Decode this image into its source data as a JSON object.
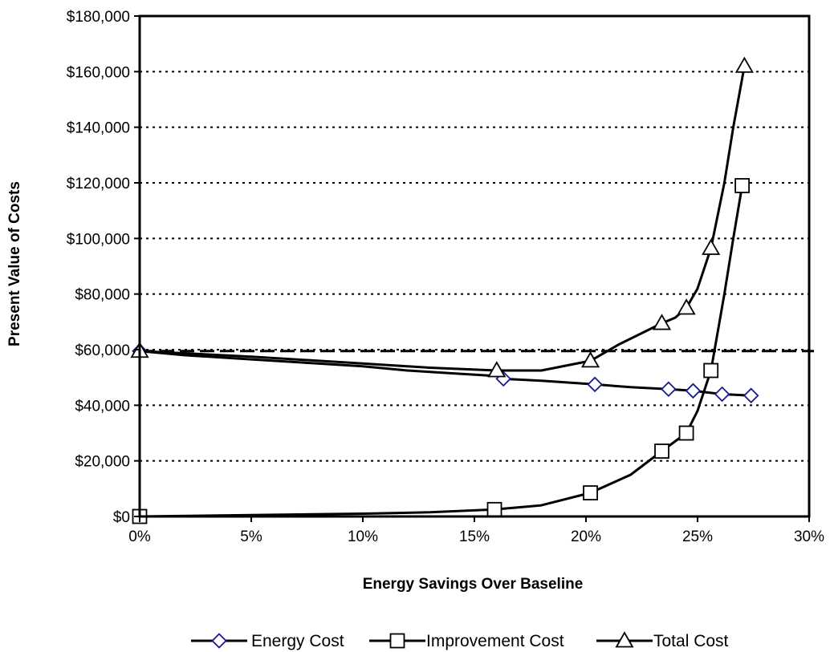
{
  "chart_data": {
    "type": "line",
    "title": "",
    "xlabel": "Energy Savings Over Baseline",
    "ylabel": "Present Value of Costs",
    "xlim": [
      0,
      0.3
    ],
    "ylim": [
      0,
      180000
    ],
    "x_ticks": [
      0,
      0.05,
      0.1,
      0.15,
      0.2,
      0.25,
      0.3
    ],
    "x_tick_labels": [
      "0%",
      "5%",
      "10%",
      "15%",
      "20%",
      "25%",
      "30%"
    ],
    "y_ticks": [
      0,
      20000,
      40000,
      60000,
      80000,
      100000,
      120000,
      140000,
      160000,
      180000
    ],
    "y_tick_labels": [
      "$0",
      "$20,000",
      "$40,000",
      "$60,000",
      "$80,000",
      "$100,000",
      "$120,000",
      "$140,000",
      "$160,000",
      "$180,000"
    ],
    "grid": "horizontal dotted",
    "legend_position": "bottom",
    "reference_line": {
      "y": 59500,
      "style": "dashed"
    },
    "series": [
      {
        "name": "Energy Cost",
        "marker": "diamond",
        "color": "#1a1a8c",
        "points": [
          [
            0,
            59500
          ],
          [
            0.02,
            58000
          ],
          [
            0.05,
            56500
          ],
          [
            0.08,
            55000
          ],
          [
            0.1,
            54000
          ],
          [
            0.12,
            52500
          ],
          [
            0.14,
            51500
          ],
          [
            0.16,
            50500
          ],
          [
            0.163,
            49500
          ],
          [
            0.18,
            48800
          ],
          [
            0.204,
            47500
          ],
          [
            0.22,
            46500
          ],
          [
            0.237,
            45800
          ],
          [
            0.248,
            45200
          ],
          [
            0.261,
            44000
          ],
          [
            0.274,
            43500
          ]
        ],
        "marker_points": [
          [
            0,
            59500
          ],
          [
            0.163,
            49500
          ],
          [
            0.204,
            47500
          ],
          [
            0.237,
            45800
          ],
          [
            0.248,
            45200
          ],
          [
            0.261,
            44000
          ],
          [
            0.274,
            43500
          ]
        ]
      },
      {
        "name": "Improvement Cost",
        "marker": "square",
        "color": "#000000",
        "points": [
          [
            0,
            0
          ],
          [
            0.05,
            500
          ],
          [
            0.1,
            1000
          ],
          [
            0.13,
            1500
          ],
          [
            0.159,
            2500
          ],
          [
            0.18,
            4000
          ],
          [
            0.202,
            8500
          ],
          [
            0.22,
            15000
          ],
          [
            0.234,
            23500
          ],
          [
            0.245,
            30000
          ],
          [
            0.25,
            38000
          ],
          [
            0.256,
            52500
          ],
          [
            0.262,
            80000
          ],
          [
            0.266,
            100000
          ],
          [
            0.27,
            119000
          ]
        ],
        "marker_points": [
          [
            0,
            0
          ],
          [
            0.159,
            2500
          ],
          [
            0.202,
            8500
          ],
          [
            0.234,
            23500
          ],
          [
            0.245,
            30000
          ],
          [
            0.256,
            52500
          ],
          [
            0.27,
            119000
          ]
        ]
      },
      {
        "name": "Total Cost",
        "marker": "triangle",
        "color": "#000000",
        "points": [
          [
            0,
            59500
          ],
          [
            0.05,
            57500
          ],
          [
            0.1,
            55000
          ],
          [
            0.13,
            53500
          ],
          [
            0.16,
            52500
          ],
          [
            0.18,
            52500
          ],
          [
            0.202,
            56000
          ],
          [
            0.215,
            62000
          ],
          [
            0.234,
            69500
          ],
          [
            0.24,
            71500
          ],
          [
            0.245,
            75000
          ],
          [
            0.25,
            82000
          ],
          [
            0.256,
            96500
          ],
          [
            0.262,
            120000
          ],
          [
            0.266,
            140000
          ],
          [
            0.271,
            162000
          ]
        ],
        "marker_points": [
          [
            0,
            59500
          ],
          [
            0.16,
            52500
          ],
          [
            0.202,
            56000
          ],
          [
            0.234,
            69500
          ],
          [
            0.245,
            75000
          ],
          [
            0.256,
            96500
          ],
          [
            0.271,
            162000
          ]
        ]
      }
    ]
  }
}
